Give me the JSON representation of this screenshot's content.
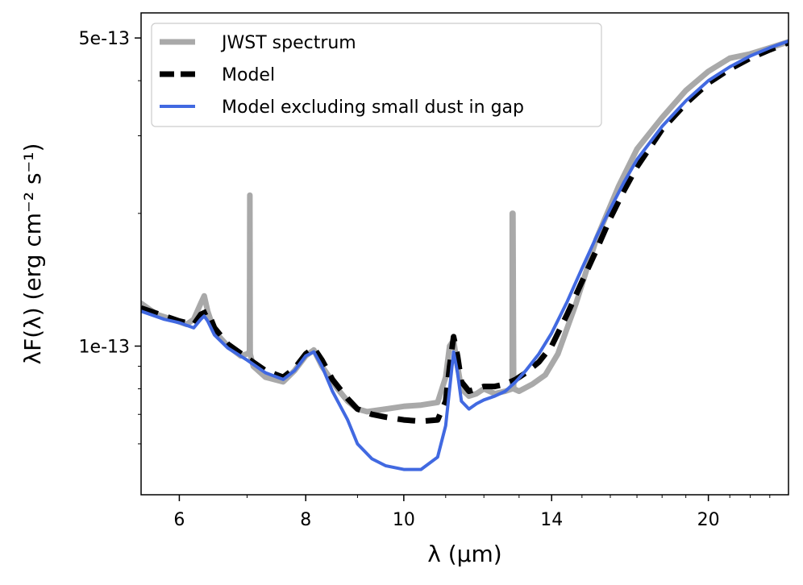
{
  "chart_data": {
    "type": "line",
    "xlabel": "λ (μm)",
    "ylabel": "λF(λ) (erg cm⁻² s⁻¹)",
    "xscale": "log",
    "yscale": "log",
    "xlim": [
      5.5,
      24.0
    ],
    "ylim": [
      4.6e-14,
      5.7e-13
    ],
    "xticks": [
      {
        "value": 6,
        "label": "6"
      },
      {
        "value": 8,
        "label": "8"
      },
      {
        "value": 10,
        "label": "10"
      },
      {
        "value": 14,
        "label": "14"
      },
      {
        "value": 20,
        "label": "20"
      }
    ],
    "xminor": [
      7,
      9,
      11,
      12,
      13,
      15,
      16,
      17,
      18,
      19,
      21,
      22,
      23
    ],
    "yticks": [
      {
        "value": 1e-13,
        "label": "1e-13"
      },
      {
        "value": 5e-13,
        "label": "5e-13"
      }
    ],
    "yminor": [
      6e-14,
      7e-14,
      8e-14,
      9e-14,
      2e-13,
      3e-13,
      4e-13
    ],
    "grid": false,
    "legend_position": "top-left",
    "series": [
      {
        "name": "JWST spectrum",
        "color": "#a9a9a9",
        "style": "solid",
        "x": [
          5.5,
          5.7,
          5.9,
          6.1,
          6.2,
          6.3,
          6.35,
          6.4,
          6.5,
          6.7,
          6.9,
          7.0,
          7.04,
          7.045,
          7.05,
          7.1,
          7.3,
          7.6,
          7.8,
          8.0,
          8.15,
          8.3,
          8.6,
          8.8,
          9.0,
          9.2,
          9.4,
          9.6,
          10.0,
          10.4,
          10.8,
          11.0,
          11.1,
          11.2,
          11.3,
          11.4,
          11.6,
          11.8,
          12.0,
          12.3,
          12.6,
          12.8,
          12.8,
          12.82,
          12.84,
          12.84,
          13.0,
          13.4,
          13.8,
          14.2,
          14.8,
          15.5,
          16.3,
          17.0,
          18.0,
          19.0,
          20.0,
          21.0,
          22.0,
          23.0,
          24.0
        ],
        "y": [
          1.25e-13,
          1.18e-13,
          1.15e-13,
          1.12e-13,
          1.15e-13,
          1.25e-13,
          1.3e-13,
          1.2e-13,
          1.08e-13,
          1e-13,
          9.5e-14,
          9.6e-14,
          9.7e-14,
          2.2e-13,
          9.6e-14,
          9e-14,
          8.5e-14,
          8.3e-14,
          8.8e-14,
          9.5e-14,
          9.8e-14,
          9e-14,
          8e-14,
          7.5e-14,
          7.2e-14,
          7.1e-14,
          7.15e-14,
          7.2e-14,
          7.3e-14,
          7.35e-14,
          7.45e-14,
          8.5e-14,
          1e-13,
          1.03e-13,
          9e-14,
          8e-14,
          7.7e-14,
          7.8e-14,
          8e-14,
          7.8e-14,
          7.9e-14,
          8e-14,
          2e-13,
          2e-13,
          8e-14,
          8e-14,
          7.9e-14,
          8.2e-14,
          8.6e-14,
          9.6e-14,
          1.25e-13,
          1.75e-13,
          2.3e-13,
          2.8e-13,
          3.3e-13,
          3.8e-13,
          4.2e-13,
          4.5e-13,
          4.6e-13,
          4.75e-13,
          4.9e-13
        ]
      },
      {
        "name": "Model",
        "color": "#000000",
        "style": "dashed",
        "x": [
          5.5,
          5.8,
          6.0,
          6.2,
          6.3,
          6.4,
          6.5,
          6.7,
          7.0,
          7.3,
          7.6,
          7.8,
          8.0,
          8.15,
          8.3,
          8.5,
          8.8,
          9.0,
          9.3,
          9.6,
          10.0,
          10.4,
          10.8,
          11.0,
          11.1,
          11.2,
          11.3,
          11.4,
          11.6,
          11.8,
          12.0,
          12.3,
          12.6,
          12.9,
          13.2,
          13.6,
          14.0,
          14.5,
          15.0,
          15.5,
          16.0,
          16.5,
          17.0,
          18.0,
          19.0,
          20.0,
          21.0,
          22.0,
          23.0,
          24.0
        ],
        "y": [
          1.22e-13,
          1.17e-13,
          1.14e-13,
          1.12e-13,
          1.18e-13,
          1.2e-13,
          1.1e-13,
          1.01e-13,
          9.4e-14,
          8.8e-14,
          8.5e-14,
          8.9e-14,
          9.6e-14,
          9.9e-14,
          9.3e-14,
          8.4e-14,
          7.6e-14,
          7.2e-14,
          7e-14,
          6.9e-14,
          6.8e-14,
          6.75e-14,
          6.8e-14,
          7.5e-14,
          9e-14,
          1.05e-13,
          9.5e-14,
          8.3e-14,
          7.9e-14,
          8e-14,
          8.1e-14,
          8.1e-14,
          8.2e-14,
          8.4e-14,
          8.7e-14,
          9.2e-14,
          1e-13,
          1.18e-13,
          1.4e-13,
          1.65e-13,
          1.95e-13,
          2.25e-13,
          2.55e-13,
          3.1e-13,
          3.55e-13,
          3.95e-13,
          4.25e-13,
          4.5e-13,
          4.7e-13,
          4.88e-13
        ]
      },
      {
        "name": "Model excluding small dust in gap",
        "color": "#4169e1",
        "style": "solid",
        "x": [
          5.5,
          5.8,
          6.0,
          6.2,
          6.3,
          6.35,
          6.4,
          6.5,
          6.7,
          7.0,
          7.3,
          7.6,
          7.8,
          8.0,
          8.15,
          8.3,
          8.5,
          8.8,
          9.0,
          9.3,
          9.6,
          10.0,
          10.4,
          10.8,
          11.0,
          11.1,
          11.2,
          11.3,
          11.4,
          11.6,
          11.8,
          12.0,
          12.3,
          12.6,
          12.9,
          13.2,
          13.6,
          14.0,
          14.5,
          15.0,
          15.5,
          16.0,
          16.5,
          17.0,
          18.0,
          19.0,
          20.0,
          21.0,
          22.0,
          23.0,
          24.0
        ],
        "y": [
          1.2e-13,
          1.15e-13,
          1.13e-13,
          1.1e-13,
          1.15e-13,
          1.17e-13,
          1.14e-13,
          1.06e-13,
          9.9e-14,
          9.3e-14,
          8.7e-14,
          8.4e-14,
          8.8e-14,
          9.5e-14,
          9.7e-14,
          9e-14,
          7.9e-14,
          6.8e-14,
          6e-14,
          5.55e-14,
          5.35e-14,
          5.25e-14,
          5.25e-14,
          5.6e-14,
          6.6e-14,
          8e-14,
          9.7e-14,
          8.7e-14,
          7.5e-14,
          7.2e-14,
          7.4e-14,
          7.55e-14,
          7.7e-14,
          7.9e-14,
          8.3e-14,
          8.8e-14,
          9.6e-14,
          1.07e-13,
          1.26e-13,
          1.5e-13,
          1.77e-13,
          2.05e-13,
          2.35e-13,
          2.65e-13,
          3.15e-13,
          3.6e-13,
          4e-13,
          4.3e-13,
          4.55e-13,
          4.75e-13,
          4.92e-13
        ]
      }
    ]
  }
}
